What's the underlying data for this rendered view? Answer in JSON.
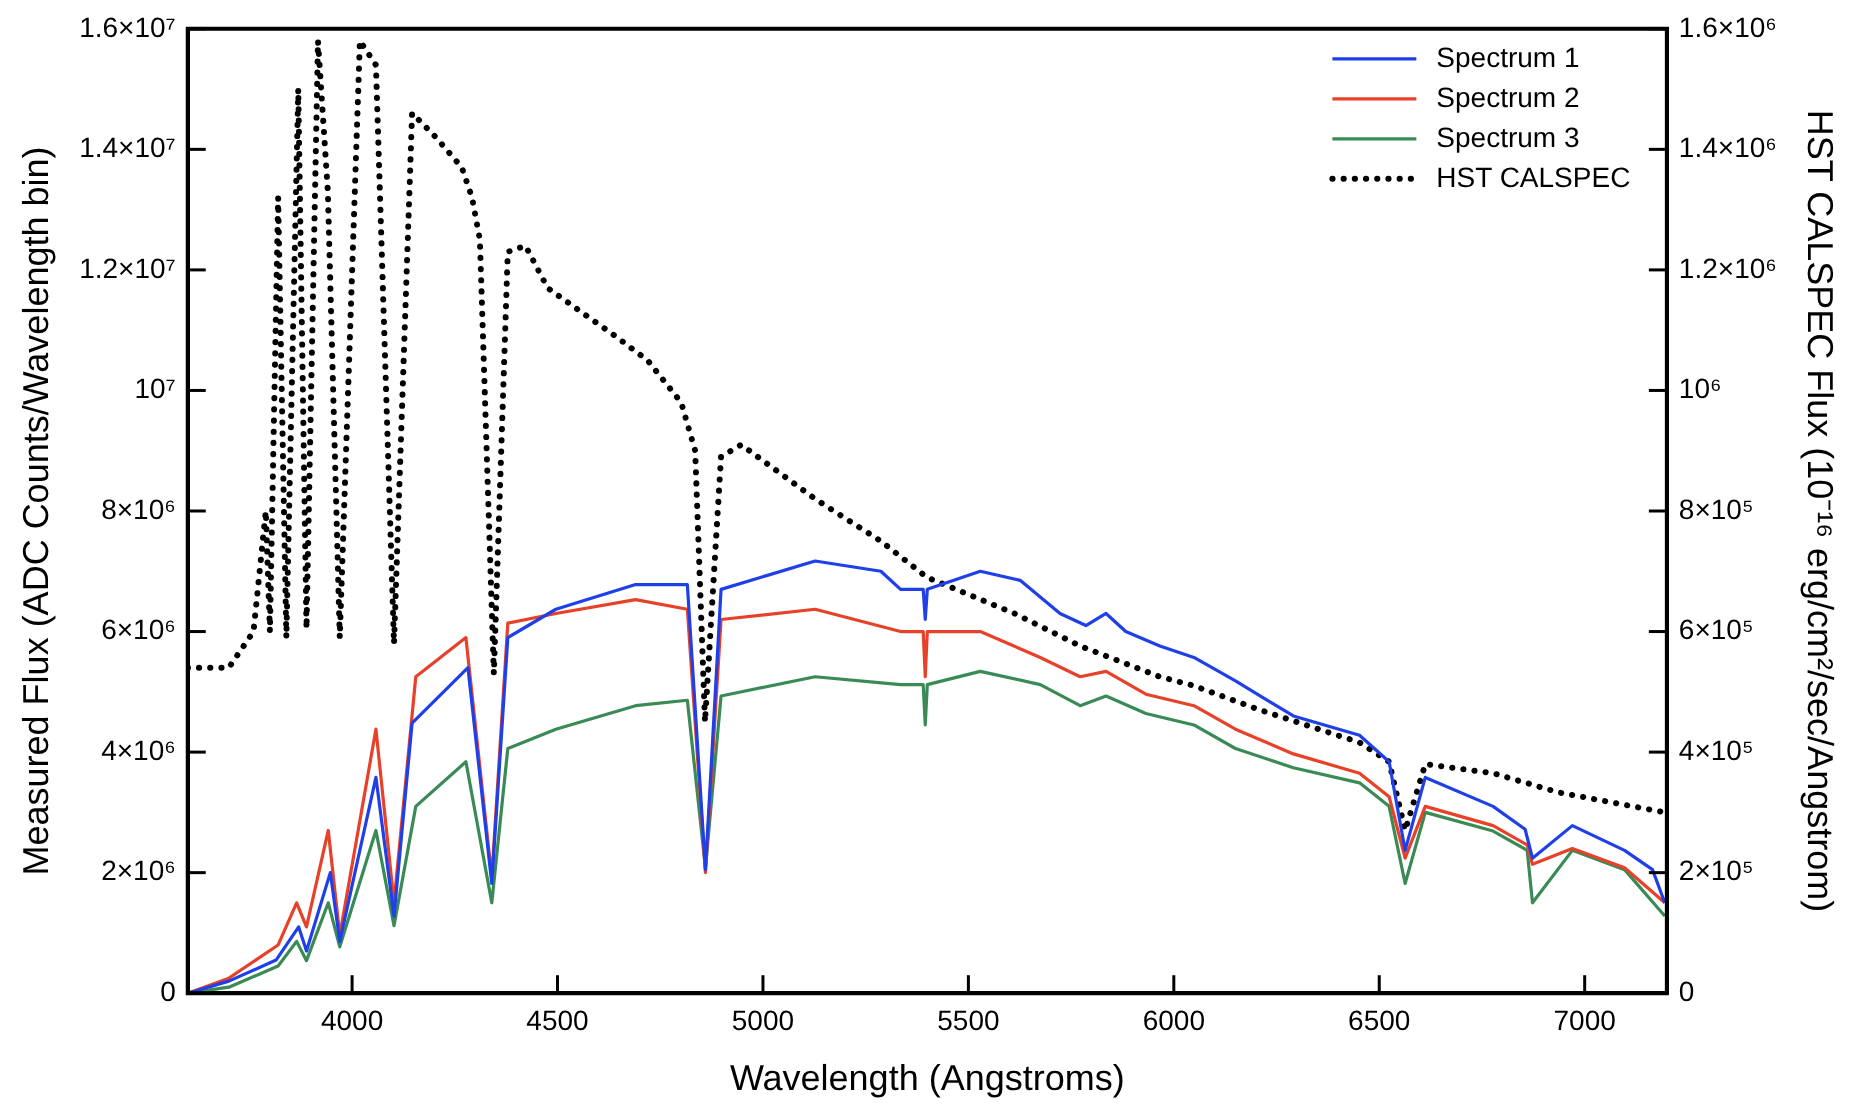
{
  "chart_data": {
    "type": "line",
    "xlabel": "Wavelength (Angstroms)",
    "ylabel": "Measured Flux (ADC Counts/Wavelength bin)",
    "y2label": "HST CALSPEC Flux (10⁻¹⁶ erg/cm²/sec/Angstrom)",
    "xlim": [
      3600,
      7200
    ],
    "xticks": [
      4000,
      4500,
      5000,
      5500,
      6000,
      6500,
      7000
    ],
    "ylim": [
      0,
      16000000
    ],
    "yticks": [
      0,
      {
        "value": 2000000,
        "label": "2×10⁶"
      },
      {
        "value": 4000000,
        "label": "4×10⁶"
      },
      {
        "value": 6000000,
        "label": "6×10⁶"
      },
      {
        "value": 8000000,
        "label": "8×10⁶"
      },
      {
        "value": 10000000,
        "label": "10⁷"
      },
      {
        "value": 12000000,
        "label": "1.2×10⁷"
      },
      {
        "value": 14000000,
        "label": "1.4×10⁷"
      },
      {
        "value": 16000000,
        "label": "1.6×10⁷"
      }
    ],
    "y2lim": [
      0,
      1600000
    ],
    "y2ticks": [
      0,
      {
        "value": 200000,
        "label": "2×10⁵"
      },
      {
        "value": 400000,
        "label": "4×10⁵"
      },
      {
        "value": 600000,
        "label": "6×10⁵"
      },
      {
        "value": 800000,
        "label": "8×10⁵"
      },
      {
        "value": 1000000,
        "label": "10⁶"
      },
      {
        "value": 1200000,
        "label": "1.2×10⁶"
      },
      {
        "value": 1400000,
        "label": "1.4×10⁶"
      },
      {
        "value": 1600000,
        "label": "1.6×10⁶"
      }
    ],
    "grid": false,
    "legend": "top right",
    "marker": "none",
    "series": [
      {
        "name": "Spectrum 1",
        "color": "#1f3fe8",
        "x": [
          3600,
          3700,
          3815,
          3870,
          3889,
          3947,
          3970,
          4058,
          4102,
          4146,
          4282,
          4340,
          4379,
          4496,
          4690,
          4816,
          4860,
          4898,
          5127,
          5287,
          5335,
          5390,
          5395,
          5400,
          5529,
          5626,
          5723,
          5786,
          5835,
          5883,
          5966,
          6049,
          6150,
          6291,
          6452,
          6524,
          6563,
          6612,
          6777,
          6855,
          6873,
          6970,
          7097,
          7165,
          7195
        ],
        "values": [
          0,
          200000,
          550000,
          1100000,
          700000,
          2000000,
          860000,
          3580000,
          1280000,
          4480000,
          5400000,
          1820000,
          5900000,
          6370000,
          6780000,
          6780000,
          2050000,
          6700000,
          7170000,
          7000000,
          6700000,
          6700000,
          6200000,
          6700000,
          7000000,
          6850000,
          6300000,
          6100000,
          6300000,
          6000000,
          5760000,
          5570000,
          5180000,
          4600000,
          4280000,
          3840000,
          2370000,
          3580000,
          3100000,
          2720000,
          2240000,
          2780000,
          2370000,
          2050000,
          1500000
        ]
      },
      {
        "name": "Spectrum 2",
        "color": "#e8412a",
        "x": [
          3600,
          3700,
          3820,
          3865,
          3889,
          3942,
          3970,
          4058,
          4102,
          4155,
          4277,
          4340,
          4379,
          4496,
          4690,
          4816,
          4860,
          4898,
          5127,
          5335,
          5390,
          5395,
          5400,
          5529,
          5675,
          5772,
          5835,
          5932,
          6049,
          6150,
          6291,
          6452,
          6524,
          6563,
          6612,
          6777,
          6860,
          6873,
          6970,
          7097,
          7195
        ],
        "values": [
          0,
          250000,
          800000,
          1500000,
          1100000,
          2700000,
          960000,
          4380000,
          1500000,
          5250000,
          5900000,
          1920000,
          6140000,
          6300000,
          6530000,
          6370000,
          2000000,
          6200000,
          6370000,
          6000000,
          6000000,
          5250000,
          6000000,
          6000000,
          5570000,
          5250000,
          5340000,
          4960000,
          4770000,
          4380000,
          3970000,
          3650000,
          3260000,
          2240000,
          3100000,
          2780000,
          2460000,
          2140000,
          2400000,
          2080000,
          1500000
        ]
      },
      {
        "name": "Spectrum 3",
        "color": "#3a8a55",
        "x": [
          3600,
          3700,
          3820,
          3865,
          3889,
          3942,
          3970,
          4058,
          4102,
          4155,
          4277,
          4340,
          4379,
          4496,
          4690,
          4816,
          4860,
          4898,
          5127,
          5335,
          5390,
          5395,
          5400,
          5529,
          5675,
          5772,
          5835,
          5932,
          6049,
          6150,
          6291,
          6452,
          6524,
          6563,
          6612,
          6777,
          6860,
          6873,
          6970,
          7097,
          7195
        ],
        "values": [
          0,
          100000,
          450000,
          860000,
          540000,
          1500000,
          770000,
          2700000,
          1120000,
          3100000,
          3840000,
          1500000,
          4060000,
          4380000,
          4770000,
          4860000,
          2080000,
          4930000,
          5250000,
          5120000,
          5120000,
          4450000,
          5120000,
          5340000,
          5120000,
          4770000,
          4930000,
          4640000,
          4450000,
          4060000,
          3740000,
          3490000,
          3100000,
          1820000,
          3000000,
          2690000,
          2370000,
          1500000,
          2370000,
          2050000,
          1280000
        ]
      },
      {
        "name": "HST CALSPEC",
        "color": "#000000",
        "axis": "y2",
        "line_style": "dotted",
        "x": [
          3600,
          3700,
          3720,
          3760,
          3790,
          3800,
          3820,
          3840,
          3869,
          3889,
          3917,
          3941,
          3970,
          4019,
          4058,
          4102,
          4146,
          4204,
          4267,
          4292,
          4311,
          4345,
          4379,
          4422,
          4476,
          4558,
          4641,
          4719,
          4801,
          4835,
          4859,
          4898,
          4947,
          5127,
          5287,
          5399,
          5612,
          5772,
          5966,
          6049,
          6209,
          6452,
          6524,
          6563,
          6612,
          6777,
          6937,
          7195
        ],
        "values": [
          540000,
          540000,
          560000,
          600000,
          800000,
          600000,
          1320000,
          590000,
          1500000,
          605000,
          1580000,
          1330000,
          590000,
          1580000,
          1540000,
          580000,
          1460000,
          1420000,
          1370000,
          1320000,
          1250000,
          530000,
          1230000,
          1240000,
          1170000,
          1130000,
          1090000,
          1050000,
          980000,
          900000,
          450000,
          890000,
          910000,
          820000,
          750000,
          690000,
          630000,
          576000,
          525000,
          510000,
          470000,
          416000,
          384000,
          270000,
          380000,
          365000,
          333000,
          300000
        ]
      }
    ]
  }
}
